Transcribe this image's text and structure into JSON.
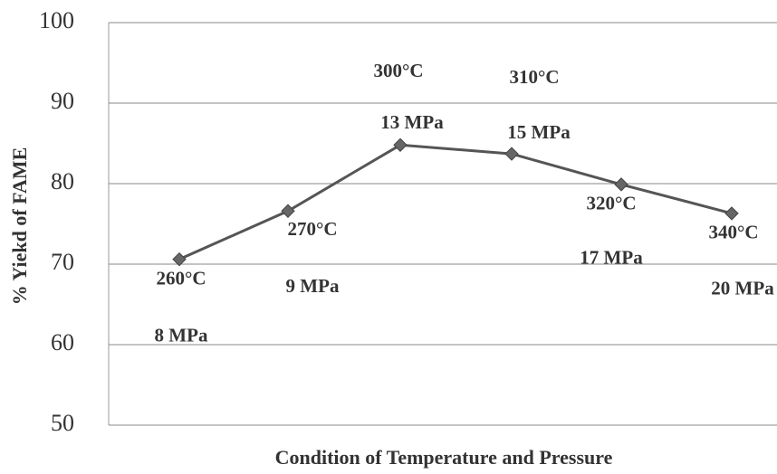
{
  "chart_data": {
    "type": "line",
    "x_label": "Condition of  Temperature and Pressure",
    "y_label": "% Yiekd of FAME",
    "values": [
      70.6,
      76.6,
      84.8,
      83.7,
      79.9,
      76.3
    ],
    "temperature_labels": [
      "260°C",
      "270°C",
      "300°C",
      "310°C",
      "320°C",
      "340°C"
    ],
    "pressure_labels": [
      "8 MPa",
      "9 MPa",
      "13 MPa",
      "15 MPa",
      "17 MPa",
      "20 MPa"
    ],
    "color": "#555555",
    "ylim": [
      50,
      100
    ],
    "yticks": [
      50,
      60,
      70,
      80,
      90,
      100
    ],
    "grid": true
  }
}
